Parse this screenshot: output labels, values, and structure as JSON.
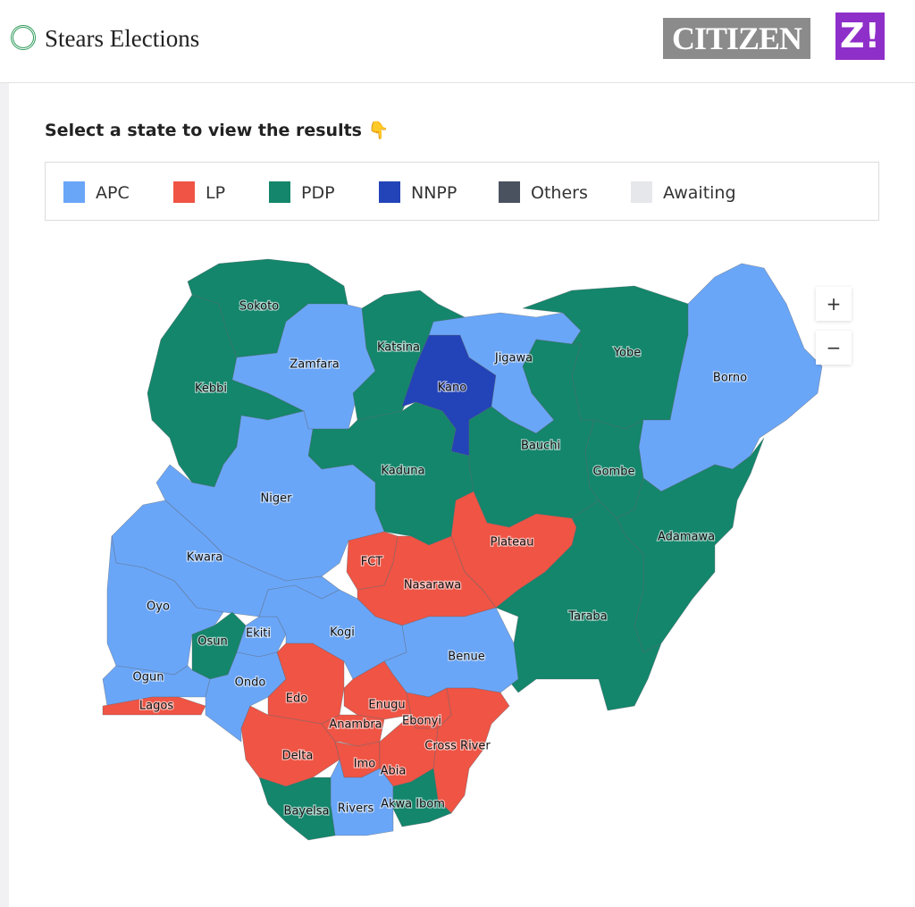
{
  "header": {
    "brand": "Stears Elections",
    "partners": [
      "CITIZEN",
      "Z!"
    ]
  },
  "prompt": "Select a state to view the results 👇",
  "legend": [
    {
      "label": "APC",
      "color": "#6aa6f8"
    },
    {
      "label": "LP",
      "color": "#ef5444"
    },
    {
      "label": "PDP",
      "color": "#13866b"
    },
    {
      "label": "NNPP",
      "color": "#2343b8"
    },
    {
      "label": "Others",
      "color": "#4a5260"
    },
    {
      "label": "Awaiting",
      "color": "#e6e7eb"
    }
  ],
  "zoom": [
    "+",
    "−"
  ],
  "states": [
    {
      "name": "Sokoto",
      "party": "PDP"
    },
    {
      "name": "Kebbi",
      "party": "PDP"
    },
    {
      "name": "Zamfara",
      "party": "APC"
    },
    {
      "name": "Katsina",
      "party": "PDP"
    },
    {
      "name": "Kano",
      "party": "NNPP"
    },
    {
      "name": "Jigawa",
      "party": "APC"
    },
    {
      "name": "Yobe",
      "party": "PDP"
    },
    {
      "name": "Borno",
      "party": "APC"
    },
    {
      "name": "Bauchi",
      "party": "PDP"
    },
    {
      "name": "Gombe",
      "party": "PDP"
    },
    {
      "name": "Adamawa",
      "party": "PDP"
    },
    {
      "name": "Taraba",
      "party": "PDP"
    },
    {
      "name": "Kaduna",
      "party": "PDP"
    },
    {
      "name": "Niger",
      "party": "APC"
    },
    {
      "name": "Plateau",
      "party": "LP"
    },
    {
      "name": "FCT",
      "party": "LP"
    },
    {
      "name": "Nasarawa",
      "party": "LP"
    },
    {
      "name": "Kwara",
      "party": "APC"
    },
    {
      "name": "Oyo",
      "party": "APC"
    },
    {
      "name": "Osun",
      "party": "PDP"
    },
    {
      "name": "Ekiti",
      "party": "APC"
    },
    {
      "name": "Ogun",
      "party": "APC"
    },
    {
      "name": "Lagos",
      "party": "LP"
    },
    {
      "name": "Ondo",
      "party": "APC"
    },
    {
      "name": "Kogi",
      "party": "APC"
    },
    {
      "name": "Benue",
      "party": "APC"
    },
    {
      "name": "Edo",
      "party": "LP"
    },
    {
      "name": "Delta",
      "party": "LP"
    },
    {
      "name": "Enugu",
      "party": "LP"
    },
    {
      "name": "Anambra",
      "party": "LP"
    },
    {
      "name": "Ebonyi",
      "party": "LP"
    },
    {
      "name": "Cross River",
      "party": "LP"
    },
    {
      "name": "Imo",
      "party": "LP"
    },
    {
      "name": "Abia",
      "party": "LP"
    },
    {
      "name": "Rivers",
      "party": "APC"
    },
    {
      "name": "Akwa Ibom",
      "party": "PDP"
    },
    {
      "name": "Bayelsa",
      "party": "PDP"
    }
  ]
}
